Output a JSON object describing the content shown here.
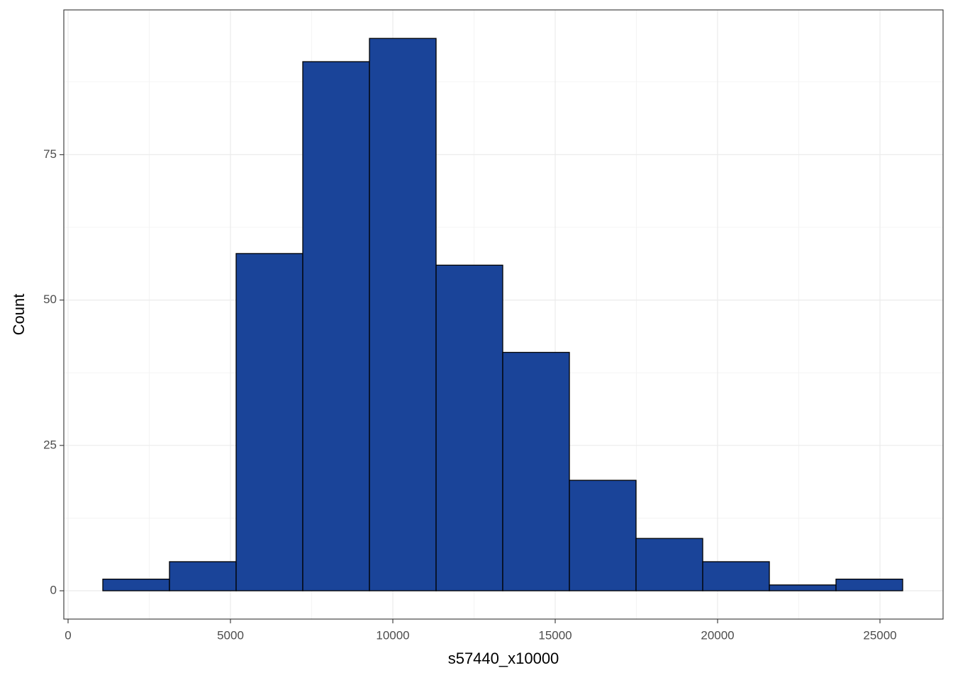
{
  "chart_data": {
    "type": "histogram",
    "x_label": "s57440_x10000",
    "y_label": "Count",
    "bins": [
      1070,
      3122,
      5175,
      7227,
      9280,
      11332,
      13384,
      15437,
      17489,
      19542,
      21594,
      23646,
      25699
    ],
    "values": [
      2,
      5,
      58,
      91,
      95,
      56,
      41,
      19,
      9,
      5,
      1,
      2
    ],
    "color": "#1a4499",
    "edge_color": "#000000",
    "xlim": [
      -131,
      26943
    ],
    "ylim": [
      -4.87,
      99.9
    ],
    "xticks": [
      0,
      5000,
      10000,
      15000,
      20000,
      25000
    ],
    "yticks": [
      0,
      25,
      50,
      75
    ],
    "grid": true
  }
}
